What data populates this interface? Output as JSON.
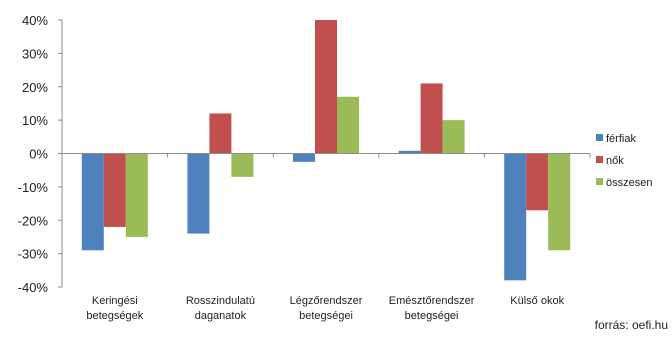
{
  "chart_data": {
    "type": "bar",
    "categories": [
      [
        "Keringési",
        "betegségek"
      ],
      [
        "Rosszindulatú",
        "daganatok"
      ],
      [
        "Légzőrendszer",
        "betegségei"
      ],
      [
        "Emésztőrendszer",
        "betegségei"
      ],
      [
        "Külső okok"
      ]
    ],
    "series": [
      {
        "name": "férfiak",
        "color": "#4f81bd",
        "values": [
          -29,
          -24,
          -2.5,
          0.8,
          -38
        ]
      },
      {
        "name": "nők",
        "color": "#c0504d",
        "values": [
          -22,
          12,
          40,
          21,
          -17
        ]
      },
      {
        "name": "összesen",
        "color": "#9bbb59",
        "values": [
          -25,
          -7,
          17,
          10,
          -29
        ]
      }
    ],
    "ylim": [
      -40,
      40
    ],
    "yticks": [
      40,
      30,
      20,
      10,
      0,
      -10,
      -20,
      -30,
      -40
    ],
    "ytick_labels": [
      "40%",
      "30%",
      "20%",
      "10%",
      "0%",
      "-10%",
      "-20%",
      "-30%",
      "-40%"
    ],
    "grid": false,
    "legend_position": "right",
    "title": "",
    "xlabel": "",
    "ylabel": ""
  },
  "source_note": "forrás: oefi.hu"
}
